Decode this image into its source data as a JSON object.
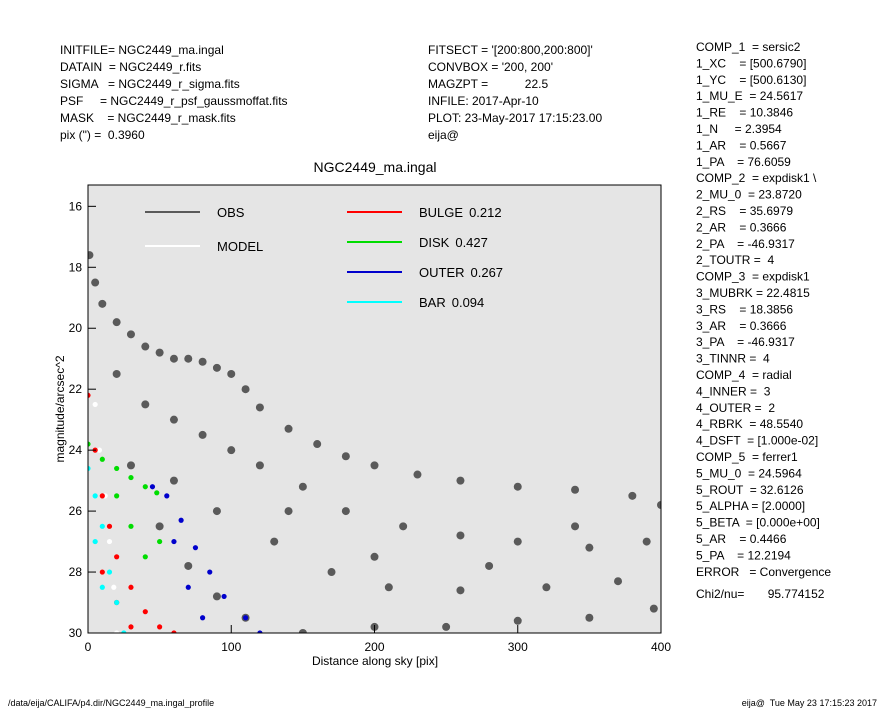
{
  "header": {
    "left": [
      "INITFILE= NGC2449_ma.ingal",
      "DATAIN  = NGC2449_r.fits",
      "SIGMA   = NGC2449_r_sigma.fits",
      "PSF     = NGC2449_r_psf_gaussmoffat.fits",
      "MASK    = NGC2449_r_mask.fits",
      "pix (\") =  0.3960"
    ],
    "middle": [
      "FITSECT = '[200:800,200:800]'",
      "CONVBOX = '200, 200'",
      "MAGZPT =           22.5",
      "INFILE: 2017-Apr-10",
      "PLOT: 23-May-2017 17:15:23.00",
      "eija@"
    ]
  },
  "parameters": [
    [
      "COMP_1  = sersic2",
      "1_XC    = [500.6790]",
      "1_YC    = [500.6130]",
      "1_MU_E  = 24.5617",
      "1_RE    = 10.3846",
      "1_N     = 2.3954",
      "1_AR    = 0.5667",
      "1_PA    = 76.6059"
    ],
    [
      "COMP_2  = expdisk1 \\",
      "2_MU_0  = 23.8720",
      "2_RS    = 35.6979",
      "2_AR    = 0.3666",
      "2_PA    = -46.9317",
      "2_TOUTR =  4"
    ],
    [
      "COMP_3  = expdisk1",
      "3_MUBRK = 22.4815",
      "3_RS    = 18.3856",
      "3_AR    = 0.3666",
      "3_PA    = -46.9317",
      "3_TINNR =  4"
    ],
    [
      "COMP_4  = radial",
      "4_INNER =  3",
      "4_OUTER =  2",
      "4_RBRK  = 48.5540",
      "4_DSFT  = [1.000e-02]"
    ],
    [
      "COMP_5  = ferrer1",
      "5_MU_0  = 24.5964",
      "5_ROUT  = 32.6126",
      "5_ALPHA = [2.0000]",
      "5_BETA  = [0.000e+00]",
      "5_AR    = 0.4466",
      "5_PA    = 12.2194"
    ],
    [
      "ERROR   = Convergence"
    ],
    [
      "Chi2/nu=       95.774152"
    ]
  ],
  "footer": {
    "left": "/data/eija/CALIFA/p4.dir/NGC2449_ma.ingal_profile",
    "right": "eija@  Tue May 23 17:15:23 2017"
  },
  "chart_data": {
    "type": "scatter",
    "title": "NGC2449_ma.ingal",
    "xlabel": "Distance along sky [pix]",
    "ylabel": "magnitude/arcsec^2",
    "xlim": [
      0,
      400
    ],
    "ylim": [
      30,
      15.3
    ],
    "xticks": [
      0,
      100,
      200,
      300,
      400
    ],
    "yticks": [
      16,
      18,
      20,
      22,
      24,
      26,
      28,
      30
    ],
    "background": "#e5e5e5",
    "series": [
      {
        "name": "OBS",
        "color": "#5a5a5a",
        "x": [
          1,
          5,
          10,
          20,
          30,
          40,
          50,
          60,
          70,
          80,
          90,
          100,
          110,
          120,
          140,
          160,
          180,
          200,
          230,
          260,
          300,
          340,
          380,
          400,
          20,
          40,
          60,
          80,
          100,
          120,
          150,
          180,
          220,
          260,
          300,
          350,
          390,
          30,
          50,
          70,
          90,
          110,
          150,
          200,
          250,
          300,
          350,
          395,
          60,
          90,
          130,
          170,
          210,
          260,
          320,
          370,
          140,
          200,
          280,
          340
        ],
        "values": [
          17.6,
          18.5,
          19.2,
          19.8,
          20.2,
          20.6,
          20.8,
          21.0,
          21.0,
          21.1,
          21.3,
          21.5,
          22.0,
          22.6,
          23.3,
          23.8,
          24.2,
          24.5,
          24.8,
          25.0,
          25.2,
          25.3,
          25.5,
          25.8,
          21.5,
          22.5,
          23.0,
          23.5,
          24.0,
          24.5,
          25.2,
          26.0,
          26.5,
          26.8,
          27.0,
          27.2,
          27.0,
          24.5,
          26.5,
          27.8,
          28.8,
          29.5,
          30.0,
          29.8,
          29.8,
          29.6,
          29.5,
          29.2,
          25.0,
          26.0,
          27.0,
          28.0,
          28.5,
          28.6,
          28.5,
          28.3,
          26.0,
          27.5,
          27.8,
          26.5
        ]
      },
      {
        "name": "MODEL",
        "color": "#ffffff",
        "x": [
          5,
          8,
          12,
          15,
          18,
          20
        ],
        "values": [
          22.5,
          24.0,
          25.5,
          27.0,
          28.5,
          30.0
        ]
      },
      {
        "name": "BULGE",
        "fraction": 0.212,
        "color": "#ff0000",
        "x": [
          0,
          5,
          10,
          15,
          20,
          30,
          40,
          50,
          60,
          10,
          20,
          30
        ],
        "values": [
          22.2,
          24.0,
          25.5,
          26.5,
          27.5,
          28.5,
          29.3,
          29.8,
          30.0,
          28.0,
          29.0,
          29.8
        ]
      },
      {
        "name": "DISK",
        "fraction": 0.427,
        "color": "#00dd00",
        "x": [
          0,
          10,
          20,
          30,
          40,
          48,
          30,
          40,
          50,
          20
        ],
        "values": [
          23.8,
          24.3,
          24.6,
          24.9,
          25.2,
          25.4,
          26.5,
          27.5,
          27.0,
          25.5
        ]
      },
      {
        "name": "OUTER",
        "fraction": 0.267,
        "color": "#0000cc",
        "x": [
          45,
          55,
          65,
          75,
          85,
          95,
          110,
          120,
          60,
          70,
          80
        ],
        "values": [
          25.2,
          25.5,
          26.3,
          27.2,
          28.0,
          28.8,
          29.5,
          30.0,
          27.0,
          28.5,
          29.5
        ]
      },
      {
        "name": "BAR",
        "fraction": 0.094,
        "color": "#00ffff",
        "x": [
          0,
          5,
          10,
          15,
          20,
          25,
          10,
          5
        ],
        "values": [
          24.6,
          25.5,
          26.5,
          28.0,
          29.0,
          30.0,
          28.5,
          27.0
        ]
      }
    ]
  }
}
